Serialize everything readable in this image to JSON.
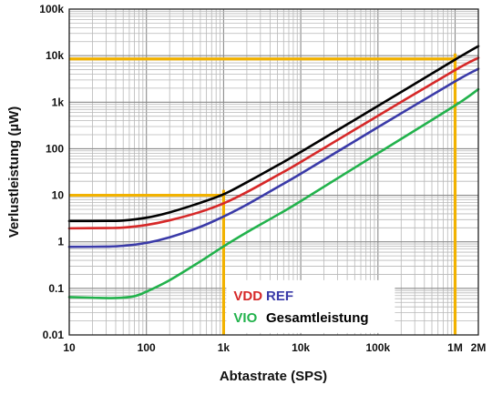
{
  "chart_data": {
    "type": "line",
    "title": "",
    "xlabel": "Abtastrate (SPS)",
    "ylabel": "Verlustleistung (µW)",
    "x_scale": "log",
    "y_scale": "log",
    "xlim": [
      10,
      2000000
    ],
    "ylim": [
      0.01,
      100000
    ],
    "x_ticks": [
      {
        "value": 10,
        "label": "10"
      },
      {
        "value": 100,
        "label": "100"
      },
      {
        "value": 1000,
        "label": "1k"
      },
      {
        "value": 10000,
        "label": "10k"
      },
      {
        "value": 100000,
        "label": "100k"
      },
      {
        "value": 1000000,
        "label": "1M"
      },
      {
        "value": 2000000,
        "label": "2M"
      }
    ],
    "y_ticks": [
      {
        "value": 0.01,
        "label": "0.01"
      },
      {
        "value": 0.1,
        "label": "0.1"
      },
      {
        "value": 1,
        "label": "1"
      },
      {
        "value": 10,
        "label": "10"
      },
      {
        "value": 100,
        "label": "100"
      },
      {
        "value": 1000,
        "label": "1k"
      },
      {
        "value": 10000,
        "label": "10k"
      },
      {
        "value": 100000,
        "label": "100k"
      }
    ],
    "grid": true,
    "legend_position": "bottom-right",
    "series": [
      {
        "name": "VDD",
        "color": "#d62828",
        "x": [
          10,
          30,
          50,
          100,
          200,
          500,
          1000,
          2000,
          5000,
          10000,
          100000,
          1000000,
          2000000
        ],
        "y": [
          1.95,
          1.98,
          2.02,
          2.3,
          2.9,
          4.4,
          6.7,
          11.7,
          27,
          52,
          510,
          4900,
          9000
        ]
      },
      {
        "name": "REF",
        "color": "#3a3aa8",
        "x": [
          10,
          30,
          50,
          100,
          200,
          500,
          1000,
          2000,
          5000,
          10000,
          100000,
          1000000,
          2000000
        ],
        "y": [
          0.78,
          0.79,
          0.82,
          0.95,
          1.25,
          2.1,
          3.5,
          6.3,
          15,
          29,
          290,
          2800,
          5200
        ]
      },
      {
        "name": "VIO",
        "color": "#22b24c",
        "x": [
          10,
          20,
          40,
          70,
          100,
          200,
          500,
          1000,
          2000,
          5000,
          10000,
          100000,
          1000000,
          2000000
        ],
        "y": [
          0.065,
          0.063,
          0.062,
          0.068,
          0.085,
          0.15,
          0.38,
          0.8,
          1.6,
          3.8,
          7.5,
          80,
          850,
          1900
        ]
      },
      {
        "name": "Gesamtleistung",
        "color": "#000000",
        "x": [
          10,
          30,
          50,
          100,
          200,
          500,
          1000,
          2000,
          5000,
          10000,
          100000,
          1000000,
          2000000
        ],
        "y": [
          2.8,
          2.82,
          2.87,
          3.3,
          4.3,
          6.9,
          10.5,
          19,
          44,
          85,
          830,
          8200,
          16000
        ]
      }
    ],
    "annotations": [
      {
        "type": "crosshair",
        "color": "#f2b200",
        "x": 1000,
        "y": 10
      },
      {
        "type": "crosshair",
        "color": "#f2b200",
        "x": 1000000,
        "y": 8500
      }
    ]
  }
}
